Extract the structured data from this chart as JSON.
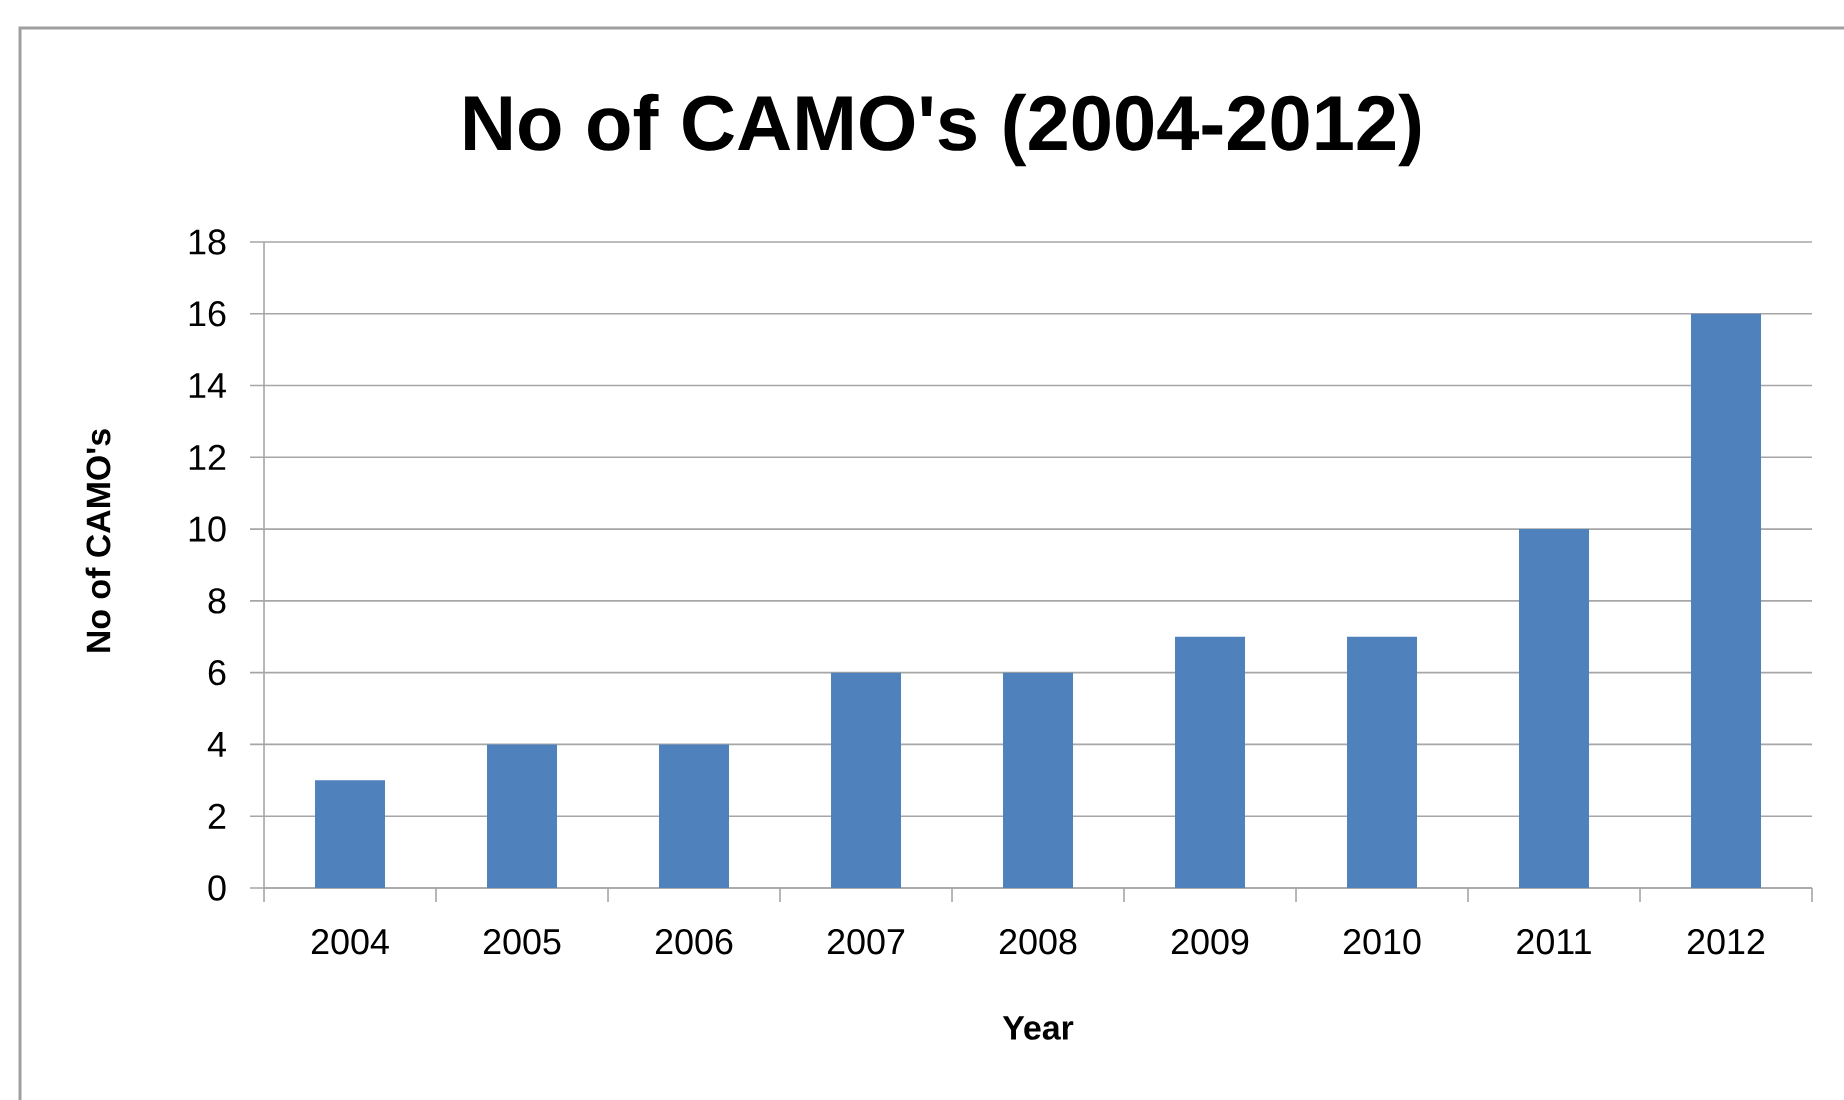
{
  "chart_data": {
    "type": "bar",
    "title": "No of CAMO's (2004-2012)",
    "xlabel": "Year",
    "ylabel": "No of CAMO's",
    "categories": [
      "2004",
      "2005",
      "2006",
      "2007",
      "2008",
      "2009",
      "2010",
      "2011",
      "2012"
    ],
    "values": [
      3,
      4,
      4,
      6,
      6,
      7,
      7,
      10,
      16
    ],
    "color": "#4f81bd",
    "ylim": [
      0,
      18
    ],
    "yticks": [
      0,
      2,
      4,
      6,
      8,
      10,
      12,
      14,
      16,
      18
    ],
    "grid": "y"
  }
}
